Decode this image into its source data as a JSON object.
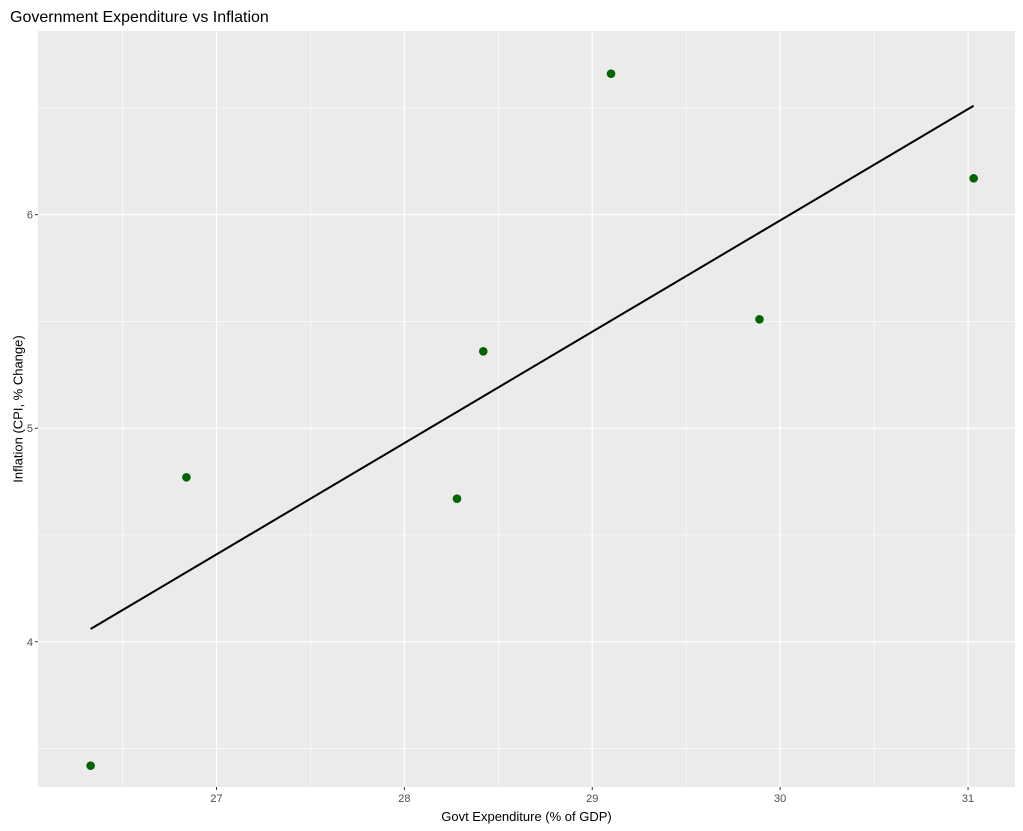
{
  "chart_data": {
    "type": "scatter",
    "title": "Government Expenditure vs Inflation",
    "xlabel": "Govt Expenditure (% of GDP)",
    "ylabel": "Inflation (CPI, % Change)",
    "xlim": [
      26.05,
      31.25
    ],
    "ylim": [
      3.32,
      6.86
    ],
    "x_ticks": [
      27,
      28,
      29,
      30,
      31
    ],
    "y_ticks": [
      4,
      5,
      6
    ],
    "grid": true,
    "point_color": "#006400",
    "line_color": "#000000",
    "panel_color": "#EBEBEB",
    "grid_color": "#FFFFFF",
    "points": [
      {
        "x": 26.33,
        "y": 3.42
      },
      {
        "x": 26.84,
        "y": 4.77
      },
      {
        "x": 28.28,
        "y": 4.67
      },
      {
        "x": 28.42,
        "y": 5.36
      },
      {
        "x": 29.1,
        "y": 6.66
      },
      {
        "x": 29.89,
        "y": 5.51
      },
      {
        "x": 31.03,
        "y": 6.17
      }
    ],
    "trend_line": {
      "x": [
        26.33,
        31.03
      ],
      "y": [
        4.06,
        6.51
      ]
    }
  }
}
